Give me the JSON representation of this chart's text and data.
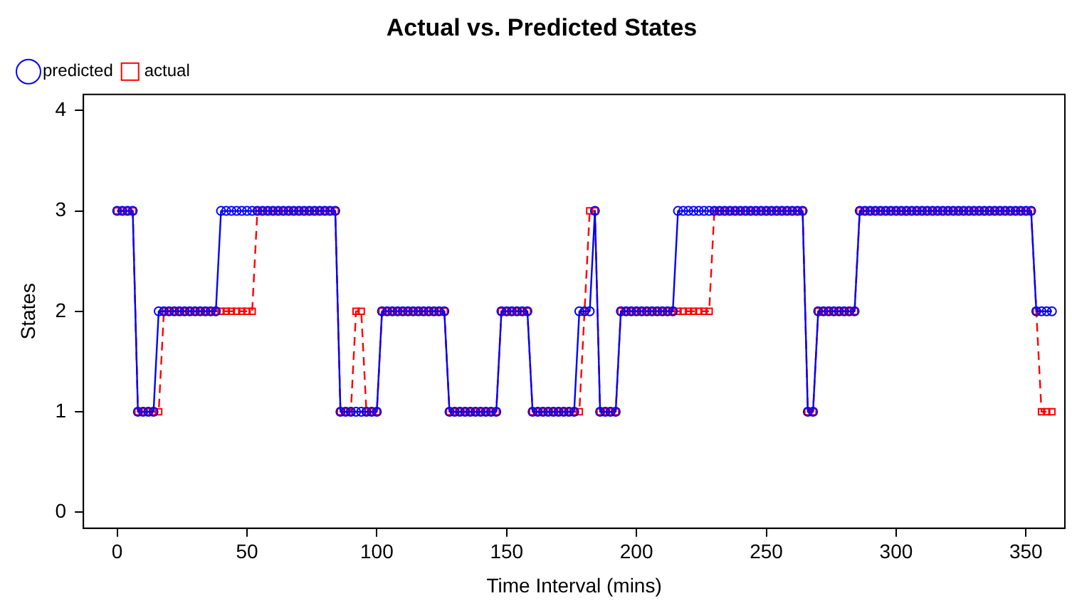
{
  "chart_data": {
    "type": "line",
    "title": "Actual vs. Predicted States",
    "xlabel": "Time Interval (mins)",
    "ylabel": "States",
    "x": [
      0,
      2,
      4,
      6,
      8,
      10,
      12,
      14,
      16,
      18,
      20,
      22,
      24,
      26,
      28,
      30,
      32,
      34,
      36,
      38,
      40,
      42,
      44,
      46,
      48,
      50,
      52,
      54,
      56,
      58,
      60,
      62,
      64,
      66,
      68,
      70,
      72,
      74,
      76,
      78,
      80,
      82,
      84,
      86,
      88,
      90,
      92,
      94,
      96,
      98,
      100,
      102,
      104,
      106,
      108,
      110,
      112,
      114,
      116,
      118,
      120,
      122,
      124,
      126,
      128,
      130,
      132,
      134,
      136,
      138,
      140,
      142,
      144,
      146,
      148,
      150,
      152,
      154,
      156,
      158,
      160,
      162,
      164,
      166,
      168,
      170,
      172,
      174,
      176,
      178,
      180,
      182,
      184,
      186,
      188,
      190,
      192,
      194,
      196,
      198,
      200,
      202,
      204,
      206,
      208,
      210,
      212,
      214,
      216,
      218,
      220,
      222,
      224,
      226,
      228,
      230,
      232,
      234,
      236,
      238,
      240,
      242,
      244,
      246,
      248,
      250,
      252,
      254,
      256,
      258,
      260,
      262,
      264,
      266,
      268,
      270,
      272,
      274,
      276,
      278,
      280,
      282,
      284,
      286,
      288,
      290,
      292,
      294,
      296,
      298,
      300,
      302,
      304,
      306,
      308,
      310,
      312,
      314,
      316,
      318,
      320,
      322,
      324,
      326,
      328,
      330,
      332,
      334,
      336,
      338,
      340,
      342,
      344,
      346,
      348,
      350,
      352,
      354,
      356,
      358,
      360
    ],
    "series": [
      {
        "name": "predicted",
        "color": "#0000ff",
        "marker": "circle",
        "line_style": "solid",
        "values": [
          3,
          3,
          3,
          3,
          1,
          1,
          1,
          1,
          2,
          2,
          2,
          2,
          2,
          2,
          2,
          2,
          2,
          2,
          2,
          2,
          3,
          3,
          3,
          3,
          3,
          3,
          3,
          3,
          3,
          3,
          3,
          3,
          3,
          3,
          3,
          3,
          3,
          3,
          3,
          3,
          3,
          3,
          3,
          1,
          1,
          1,
          1,
          1,
          1,
          1,
          1,
          2,
          2,
          2,
          2,
          2,
          2,
          2,
          2,
          2,
          2,
          2,
          2,
          2,
          1,
          1,
          1,
          1,
          1,
          1,
          1,
          1,
          1,
          1,
          2,
          2,
          2,
          2,
          2,
          2,
          1,
          1,
          1,
          1,
          1,
          1,
          1,
          1,
          1,
          2,
          2,
          2,
          3,
          1,
          1,
          1,
          1,
          2,
          2,
          2,
          2,
          2,
          2,
          2,
          2,
          2,
          2,
          2,
          3,
          3,
          3,
          3,
          3,
          3,
          3,
          3,
          3,
          3,
          3,
          3,
          3,
          3,
          3,
          3,
          3,
          3,
          3,
          3,
          3,
          3,
          3,
          3,
          3,
          1,
          1,
          2,
          2,
          2,
          2,
          2,
          2,
          2,
          2,
          3,
          3,
          3,
          3,
          3,
          3,
          3,
          3,
          3,
          3,
          3,
          3,
          3,
          3,
          3,
          3,
          3,
          3,
          3,
          3,
          3,
          3,
          3,
          3,
          3,
          3,
          3,
          3,
          3,
          3,
          3,
          3,
          3,
          3,
          2,
          2,
          2,
          2
        ]
      },
      {
        "name": "actual",
        "color": "#ff0000",
        "marker": "square",
        "line_style": "dashed",
        "values": [
          3,
          3,
          3,
          3,
          1,
          1,
          1,
          1,
          1,
          2,
          2,
          2,
          2,
          2,
          2,
          2,
          2,
          2,
          2,
          2,
          2,
          2,
          2,
          2,
          2,
          2,
          2,
          3,
          3,
          3,
          3,
          3,
          3,
          3,
          3,
          3,
          3,
          3,
          3,
          3,
          3,
          3,
          3,
          1,
          1,
          1,
          2,
          2,
          1,
          1,
          1,
          2,
          2,
          2,
          2,
          2,
          2,
          2,
          2,
          2,
          2,
          2,
          2,
          2,
          1,
          1,
          1,
          1,
          1,
          1,
          1,
          1,
          1,
          1,
          2,
          2,
          2,
          2,
          2,
          2,
          1,
          1,
          1,
          1,
          1,
          1,
          1,
          1,
          1,
          1,
          2,
          3,
          3,
          1,
          1,
          1,
          1,
          2,
          2,
          2,
          2,
          2,
          2,
          2,
          2,
          2,
          2,
          2,
          2,
          2,
          2,
          2,
          2,
          2,
          2,
          3,
          3,
          3,
          3,
          3,
          3,
          3,
          3,
          3,
          3,
          3,
          3,
          3,
          3,
          3,
          3,
          3,
          3,
          1,
          1,
          2,
          2,
          2,
          2,
          2,
          2,
          2,
          2,
          3,
          3,
          3,
          3,
          3,
          3,
          3,
          3,
          3,
          3,
          3,
          3,
          3,
          3,
          3,
          3,
          3,
          3,
          3,
          3,
          3,
          3,
          3,
          3,
          3,
          3,
          3,
          3,
          3,
          3,
          3,
          3,
          3,
          3,
          2,
          1,
          1,
          1
        ]
      }
    ],
    "xlim": [
      -13,
      365
    ],
    "xticks": [
      0,
      50,
      100,
      150,
      200,
      250,
      300,
      350
    ],
    "ylim": [
      -0.16,
      4.16
    ],
    "yticks": [
      0,
      1,
      2,
      3,
      4
    ],
    "grid": false,
    "legend": "top left"
  }
}
